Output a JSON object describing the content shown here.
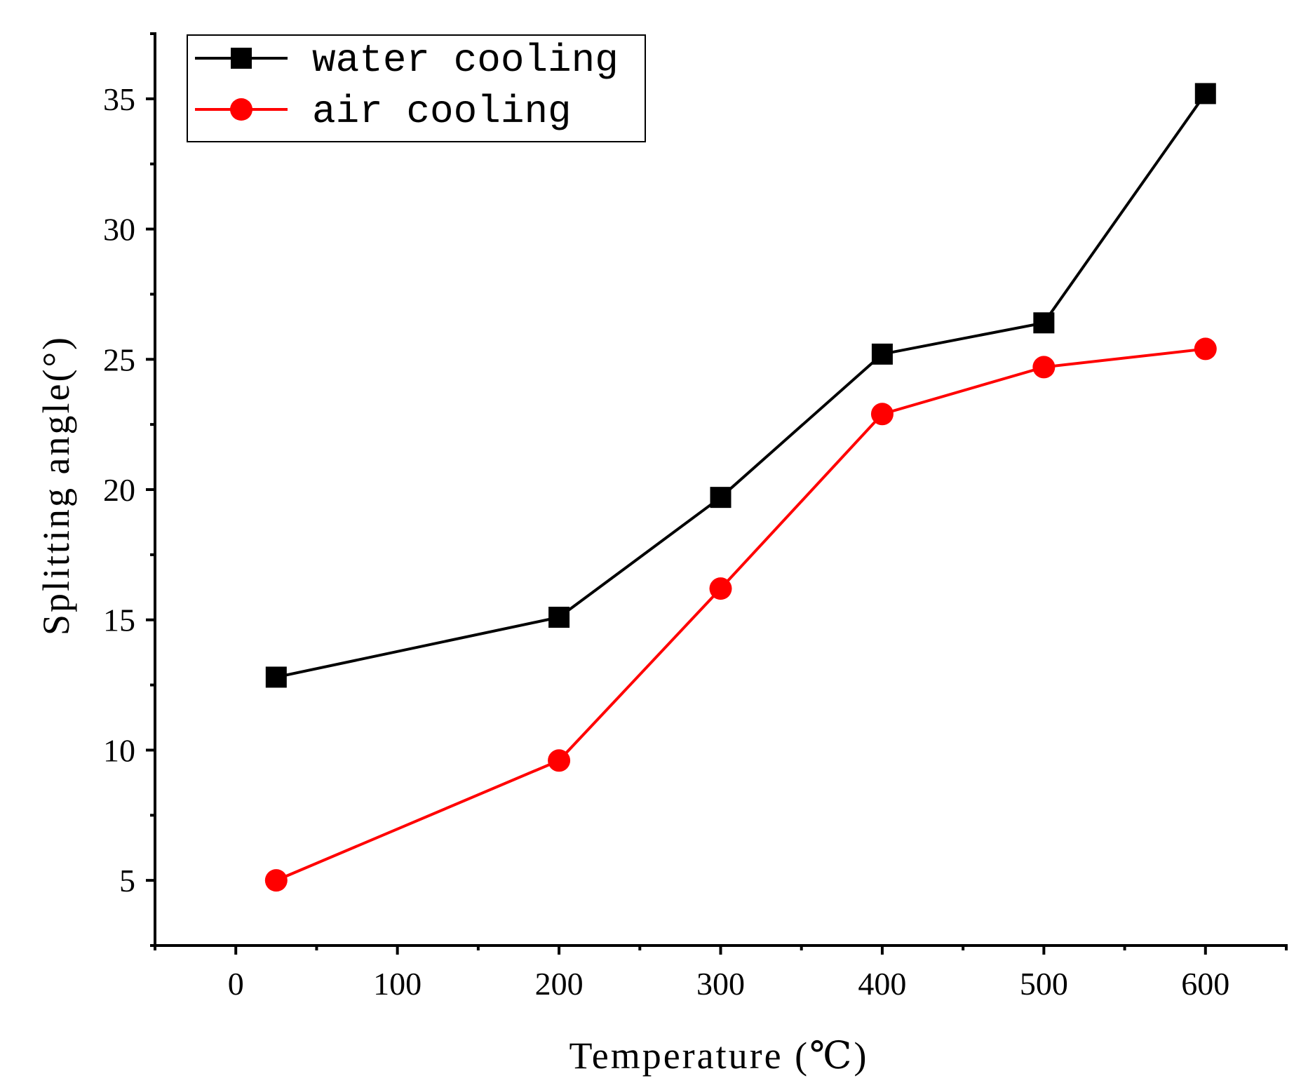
{
  "chart_data": {
    "type": "line",
    "title": "",
    "xlabel": "Temperature (℃)",
    "ylabel": "Splitting angle(°)",
    "xlim": [
      -50,
      650
    ],
    "ylim": [
      2.5,
      37.5
    ],
    "x_ticks": [
      0,
      100,
      200,
      300,
      400,
      500,
      600
    ],
    "y_ticks": [
      5,
      10,
      15,
      20,
      25,
      30,
      35
    ],
    "x_minor_ticks": [
      -50,
      50,
      150,
      250,
      350,
      450,
      550,
      650
    ],
    "y_minor_ticks": [
      2.5,
      7.5,
      12.5,
      17.5,
      22.5,
      27.5,
      32.5,
      37.5
    ],
    "x": [
      25,
      200,
      300,
      400,
      500,
      600
    ],
    "series": [
      {
        "name": "water cooling",
        "color": "#000000",
        "marker": "square",
        "values": [
          12.8,
          15.1,
          19.7,
          25.2,
          26.4,
          35.2
        ]
      },
      {
        "name": "air cooling",
        "color": "#ff0000",
        "marker": "circle",
        "values": [
          5.0,
          9.6,
          16.2,
          22.9,
          24.7,
          25.4
        ]
      }
    ],
    "legend_position": "top-left",
    "grid": false
  }
}
